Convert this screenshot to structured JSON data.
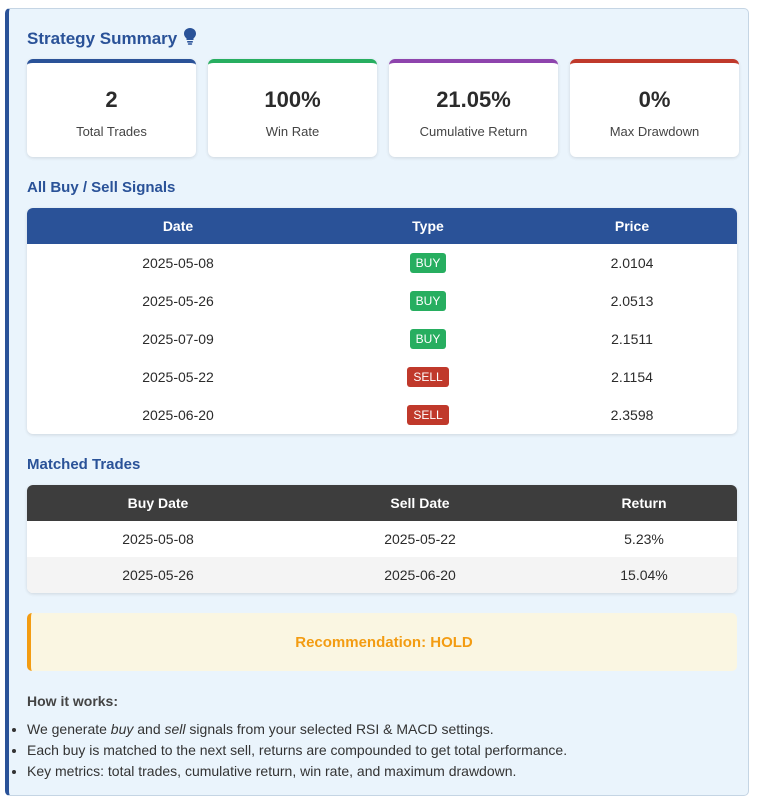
{
  "summary": {
    "title": "Strategy Summary",
    "icon": "lightbulb-icon",
    "cards": [
      {
        "value": "2",
        "label": "Total Trades",
        "color": "#2a5298"
      },
      {
        "value": "100%",
        "label": "Win Rate",
        "color": "#27ae60"
      },
      {
        "value": "21.05%",
        "label": "Cumulative Return",
        "color": "#8e44ad"
      },
      {
        "value": "0%",
        "label": "Max Drawdown",
        "color": "#c0392b"
      }
    ]
  },
  "signals": {
    "title": "All Buy / Sell Signals",
    "headers": [
      "Date",
      "Type",
      "Price"
    ],
    "header_color": "#2a5298",
    "buy_color": "#27ae60",
    "sell_color": "#c0392b",
    "rows": [
      {
        "date": "2025-05-08",
        "type": "BUY",
        "price": "2.0104"
      },
      {
        "date": "2025-05-26",
        "type": "BUY",
        "price": "2.0513"
      },
      {
        "date": "2025-07-09",
        "type": "BUY",
        "price": "2.1511"
      },
      {
        "date": "2025-05-22",
        "type": "SELL",
        "price": "2.1154"
      },
      {
        "date": "2025-06-20",
        "type": "SELL",
        "price": "2.3598"
      }
    ]
  },
  "matched": {
    "title": "Matched Trades",
    "headers": [
      "Buy Date",
      "Sell Date",
      "Return"
    ],
    "header_color": "#3d3d3d",
    "rows": [
      {
        "buy_date": "2025-05-08",
        "sell_date": "2025-05-22",
        "return": "5.23%"
      },
      {
        "buy_date": "2025-05-26",
        "sell_date": "2025-06-20",
        "return": "15.04%"
      }
    ]
  },
  "recommendation": {
    "text": "Recommendation: HOLD",
    "color": "#f39c12"
  },
  "how_it_works": {
    "title": "How it works:",
    "items": [
      [
        {
          "t": "We generate "
        },
        {
          "t": "buy",
          "em": true
        },
        {
          "t": " and "
        },
        {
          "t": "sell",
          "em": true
        },
        {
          "t": " signals from your selected RSI & MACD settings."
        }
      ],
      [
        {
          "t": "Each buy is matched to the next sell, returns are compounded to get total performance."
        }
      ],
      [
        {
          "t": "Key metrics: total trades, cumulative return, win rate, and maximum drawdown."
        }
      ]
    ]
  }
}
